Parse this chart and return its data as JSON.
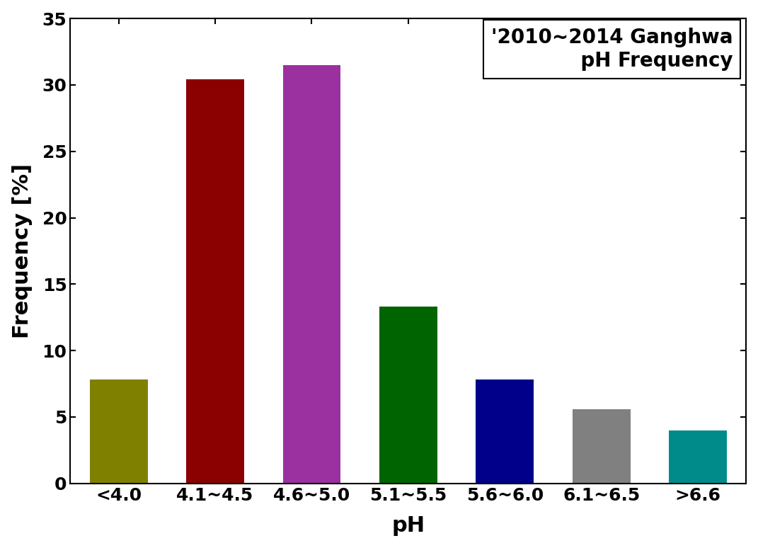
{
  "categories": [
    "<4.0",
    "4.1~4.5",
    "4.6~5.0",
    "5.1~5.5",
    "5.6~6.0",
    "6.1~6.5",
    ">6.6"
  ],
  "values": [
    7.8,
    30.4,
    31.5,
    13.3,
    7.8,
    5.6,
    4.0
  ],
  "bar_colors": [
    "#808000",
    "#8B0000",
    "#9B30A0",
    "#006400",
    "#00008B",
    "#808080",
    "#008B8B"
  ],
  "title_line1": "'2010~2014 Ganghwa",
  "title_line2": "       pH Frequency",
  "xlabel": "pH",
  "ylabel": "Frequency [%]",
  "ylim": [
    0,
    35
  ],
  "yticks": [
    0,
    5,
    10,
    15,
    20,
    25,
    30,
    35
  ],
  "title_fontsize": 20,
  "axis_label_fontsize": 22,
  "tick_fontsize": 18,
  "background_color": "#ffffff"
}
